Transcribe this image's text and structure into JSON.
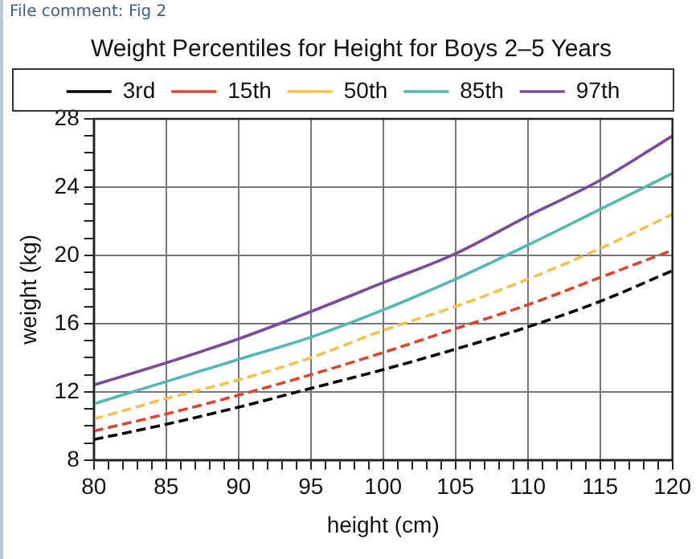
{
  "chart_data": {
    "type": "line",
    "title": "Weight Percentiles for Height for Boys 2–5 Years",
    "xlabel": "height (cm)",
    "ylabel": "weight (kg)",
    "annotations": [
      "File comment: Fig 2"
    ],
    "x": [
      80,
      85,
      90,
      95,
      100,
      105,
      110,
      115,
      120
    ],
    "series": [
      {
        "name": "3rd",
        "color": "#000000",
        "line_style": "dashed",
        "values": [
          9.2,
          10.1,
          11.1,
          12.2,
          13.3,
          14.5,
          15.8,
          17.3,
          19.1
        ]
      },
      {
        "name": "15th",
        "color": "#e0452c",
        "line_style": "dashed",
        "values": [
          9.7,
          10.7,
          11.8,
          13.0,
          14.3,
          15.7,
          17.1,
          18.7,
          20.3
        ]
      },
      {
        "name": "50th",
        "color": "#f5c14a",
        "line_style": "dashed",
        "values": [
          10.4,
          11.6,
          12.7,
          14.0,
          15.6,
          17.0,
          18.6,
          20.4,
          22.4
        ]
      },
      {
        "name": "85th",
        "color": "#4fb9b5",
        "line_style": "solid",
        "values": [
          11.3,
          12.6,
          13.9,
          15.2,
          16.8,
          18.6,
          20.6,
          22.7,
          24.8
        ]
      },
      {
        "name": "97th",
        "color": "#7a4a9c",
        "line_style": "solid",
        "values": [
          12.4,
          13.7,
          15.1,
          16.7,
          18.4,
          20.1,
          22.3,
          24.4,
          27.0
        ]
      }
    ],
    "xlim": [
      80,
      120
    ],
    "xticks": [
      80,
      {
        "value": 81,
        "label": null
      },
      {
        "value": 82,
        "label": null
      },
      {
        "value": 83,
        "label": null
      },
      {
        "value": 84,
        "label": null
      },
      85,
      {
        "value": 86,
        "label": null
      },
      {
        "value": 87,
        "label": null
      },
      {
        "value": 88,
        "label": null
      },
      {
        "value": 89,
        "label": null
      },
      90,
      {
        "value": 91,
        "label": null
      },
      {
        "value": 92,
        "label": null
      },
      {
        "value": 93,
        "label": null
      },
      {
        "value": 94,
        "label": null
      },
      95,
      {
        "value": 96,
        "label": null
      },
      {
        "value": 97,
        "label": null
      },
      {
        "value": 98,
        "label": null
      },
      {
        "value": 99,
        "label": null
      },
      100,
      {
        "value": 101,
        "label": null
      },
      {
        "value": 102,
        "label": null
      },
      {
        "value": 103,
        "label": null
      },
      {
        "value": 104,
        "label": null
      },
      105,
      {
        "value": 106,
        "label": null
      },
      {
        "value": 107,
        "label": null
      },
      {
        "value": 108,
        "label": null
      },
      {
        "value": 109,
        "label": null
      },
      110,
      {
        "value": 111,
        "label": null
      },
      {
        "value": 112,
        "label": null
      },
      {
        "value": 113,
        "label": null
      },
      {
        "value": 114,
        "label": null
      },
      115,
      {
        "value": 116,
        "label": null
      },
      {
        "value": 117,
        "label": null
      },
      {
        "value": 118,
        "label": null
      },
      {
        "value": 119,
        "label": null
      },
      120
    ],
    "ylim": [
      8,
      28
    ],
    "yticks": [
      8,
      {
        "value": 9,
        "label": null
      },
      {
        "value": 10,
        "label": null
      },
      {
        "value": 11,
        "label": null
      },
      12,
      {
        "value": 13,
        "label": null
      },
      {
        "value": 14,
        "label": null
      },
      {
        "value": 15,
        "label": null
      },
      16,
      {
        "value": 17,
        "label": null
      },
      {
        "value": 18,
        "label": null
      },
      {
        "value": 19,
        "label": null
      },
      20,
      {
        "value": 21,
        "label": null
      },
      {
        "value": 22,
        "label": null
      },
      {
        "value": 23,
        "label": null
      },
      24,
      {
        "value": 25,
        "label": null
      },
      {
        "value": 26,
        "label": null
      },
      {
        "value": 27,
        "label": null
      },
      28
    ],
    "grid": true,
    "legend": "top",
    "marker": "none"
  }
}
